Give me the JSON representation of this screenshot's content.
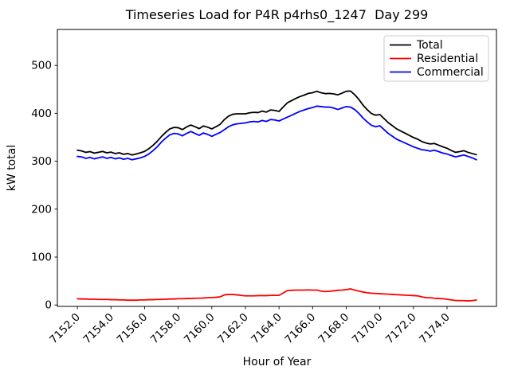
{
  "figure": {
    "background": "#ffffff"
  },
  "chart_data": {
    "type": "line",
    "title": "Timeseries Load for P4R p4rhs0_1247  Day 299",
    "xlabel": "Hour of Year",
    "ylabel": "kW total",
    "grid": false,
    "legend_position": "upper right",
    "legend_entries": [
      "Total",
      "Residential",
      "Commercial"
    ],
    "xlim": [
      7150.81,
      7176.94
    ],
    "ylim": [
      -3,
      575
    ],
    "xticks": {
      "values": [
        7152,
        7154,
        7156,
        7158,
        7160,
        7162,
        7164,
        7166,
        7168,
        7170,
        7172,
        7174
      ],
      "labels": [
        "7152.0",
        "7154.0",
        "7156.0",
        "7158.0",
        "7160.0",
        "7162.0",
        "7164.0",
        "7166.0",
        "7168.0",
        "7170.0",
        "7172.0",
        "7174.0"
      ],
      "rotation": 45
    },
    "yticks": {
      "values": [
        0,
        100,
        200,
        300,
        400,
        500
      ],
      "labels": [
        "0",
        "100",
        "200",
        "300",
        "400",
        "500"
      ]
    },
    "x": [
      7152.0,
      7152.25,
      7152.5,
      7152.75,
      7153.0,
      7153.25,
      7153.5,
      7153.75,
      7154.0,
      7154.25,
      7154.5,
      7154.75,
      7155.0,
      7155.25,
      7155.5,
      7155.75,
      7156.0,
      7156.25,
      7156.5,
      7156.75,
      7157.0,
      7157.25,
      7157.5,
      7157.75,
      7158.0,
      7158.25,
      7158.5,
      7158.75,
      7159.0,
      7159.25,
      7159.5,
      7159.75,
      7160.0,
      7160.25,
      7160.5,
      7160.75,
      7161.0,
      7161.25,
      7161.5,
      7161.75,
      7162.0,
      7162.25,
      7162.5,
      7162.75,
      7163.0,
      7163.25,
      7163.5,
      7163.75,
      7164.0,
      7164.25,
      7164.5,
      7164.75,
      7165.0,
      7165.25,
      7165.5,
      7165.75,
      7166.0,
      7166.25,
      7166.5,
      7166.75,
      7167.0,
      7167.25,
      7167.5,
      7167.75,
      7168.0,
      7168.25,
      7168.5,
      7168.75,
      7169.0,
      7169.25,
      7169.5,
      7169.75,
      7170.0,
      7170.25,
      7170.5,
      7170.75,
      7171.0,
      7171.25,
      7171.5,
      7171.75,
      7172.0,
      7172.25,
      7172.5,
      7172.75,
      7173.0,
      7173.25,
      7173.5,
      7173.75,
      7174.0,
      7174.25,
      7174.5,
      7174.75,
      7175.0,
      7175.25,
      7175.5,
      7175.75
    ],
    "series": [
      {
        "name": "Total",
        "color": "#000000",
        "values": [
          323,
          321.5,
          318.5,
          320,
          317,
          318.5,
          320.5,
          317.5,
          319,
          316,
          317.5,
          314.5,
          316,
          313,
          315,
          317.5,
          320.5,
          326,
          333,
          341.5,
          351.5,
          360,
          367.5,
          370.5,
          370,
          366,
          371.5,
          375.5,
          372,
          368,
          373.5,
          371,
          367.5,
          372,
          377,
          387,
          394,
          398,
          399,
          399,
          399,
          401,
          402,
          401.5,
          404.5,
          402.5,
          407,
          406,
          404,
          413,
          422,
          426.5,
          431,
          435,
          438,
          441.5,
          443,
          446,
          443,
          441,
          441.5,
          440.5,
          438.5,
          442,
          446,
          446.5,
          439,
          429,
          417,
          407.5,
          399.5,
          396,
          397.5,
          389,
          380.5,
          374,
          367.5,
          363,
          358.5,
          354,
          349.5,
          346,
          341,
          338,
          336,
          337,
          333.5,
          330,
          327,
          322.5,
          318.5,
          320,
          322,
          318.5,
          316,
          313.5
        ]
      },
      {
        "name": "Residential",
        "color": "#ff0000",
        "values": [
          13,
          12.5,
          12.5,
          12,
          12,
          11.5,
          11.5,
          11.5,
          11,
          11,
          10.5,
          10.5,
          10,
          10,
          10,
          10.5,
          10.5,
          11,
          11,
          11.5,
          11.5,
          12,
          12.5,
          12.5,
          13,
          13,
          13.5,
          13.5,
          14,
          14,
          14.5,
          15,
          15.5,
          16,
          17,
          21,
          22,
          22,
          21,
          20,
          19,
          19,
          19,
          19.5,
          19.5,
          19.5,
          20,
          20,
          20,
          25,
          30,
          30.5,
          31,
          31,
          31,
          31.5,
          31,
          31,
          29,
          28,
          28.5,
          29.5,
          30.5,
          31,
          32,
          33.5,
          31,
          29,
          27,
          25.5,
          24.5,
          24,
          23.5,
          23,
          22.5,
          22,
          21.5,
          21,
          20.5,
          20,
          19.5,
          19,
          17,
          15,
          15,
          14,
          13.5,
          13,
          12,
          10.5,
          9.5,
          9,
          9,
          8.5,
          9,
          10.5
        ]
      },
      {
        "name": "Commercial",
        "color": "#0000ff",
        "values": [
          310,
          309,
          306,
          308,
          305,
          307,
          309,
          306,
          308,
          305,
          307,
          304,
          306,
          303,
          305,
          307,
          310,
          315,
          322,
          330,
          340,
          348,
          355,
          358,
          357,
          353,
          358,
          362,
          358,
          354,
          359,
          356,
          352,
          356,
          360,
          366,
          372,
          376,
          378,
          379,
          380,
          382,
          383,
          382,
          385,
          383,
          387,
          386,
          384,
          388,
          392,
          396,
          400,
          404,
          407,
          410,
          412,
          415,
          414,
          413,
          413,
          411,
          408,
          411,
          414,
          413,
          408,
          400,
          390,
          382,
          375,
          372,
          374,
          366,
          358,
          352,
          346,
          342,
          338,
          334,
          330,
          327,
          324,
          323,
          321,
          323,
          320,
          317,
          315,
          312,
          309,
          311,
          313,
          310,
          307,
          303
        ]
      }
    ]
  }
}
